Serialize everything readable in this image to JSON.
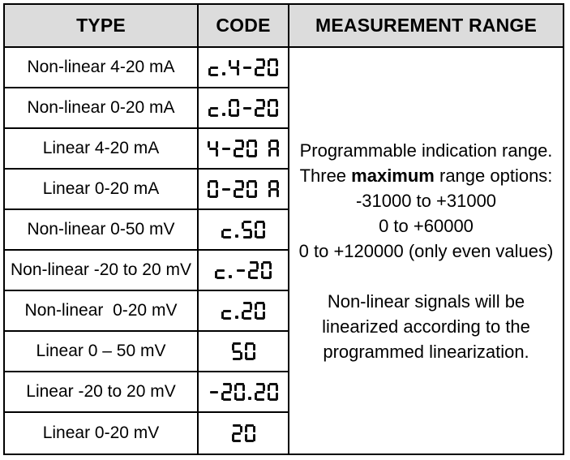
{
  "header": {
    "type": "TYPE",
    "code": "CODE",
    "range": "MEASUREMENT RANGE"
  },
  "rows": [
    {
      "type": "Non-linear 4-20 mA",
      "code": "c.4-20"
    },
    {
      "type": "Non-linear 0-20 mA",
      "code": "c.0-20"
    },
    {
      "type": "Linear 4-20 mA",
      "code": "4-20 A"
    },
    {
      "type": "Linear 0-20 mA",
      "code": "0-20 A"
    },
    {
      "type": "Non-linear 0-50 mV",
      "code": "c.50"
    },
    {
      "type": "Non-linear -20 to 20 mV",
      "code": "c.-20"
    },
    {
      "type": "Non-linear  0-20 mV",
      "code": "c.20"
    },
    {
      "type": "Linear 0 – 50 mV",
      "code": "50"
    },
    {
      "type": "Linear -20 to 20 mV",
      "code": "-20.20"
    },
    {
      "type": "Linear 0-20 mV",
      "code": "20"
    }
  ],
  "range_cell": {
    "line1": "Programmable indication range.",
    "line2_prefix": "Three ",
    "line2_bold": "maximum",
    "line2_suffix": " range options:",
    "line3": "-31000 to +31000",
    "line4": "0 to +60000",
    "line5": "0 to +120000 (only even values)",
    "line6": "Non-linear signals will be",
    "line7": "linearized according to the",
    "line8": "programmed linearization."
  },
  "colors": {
    "header_bg": "#dcdcdc",
    "border": "#000000",
    "text": "#000000",
    "segment_digit": "#111111"
  }
}
